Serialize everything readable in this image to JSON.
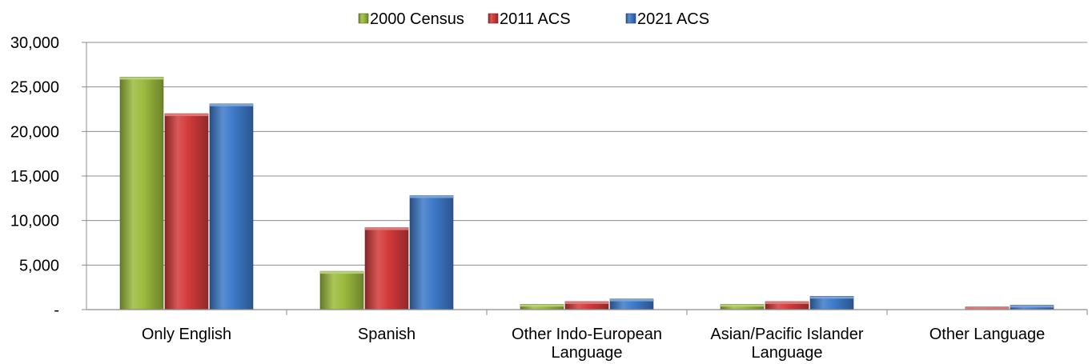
{
  "chart_data": {
    "type": "bar",
    "categories": [
      [
        "Only English"
      ],
      [
        "Spanish"
      ],
      [
        "Other Indo-European",
        "Language"
      ],
      [
        "Asian/Pacific Islander",
        "Language"
      ],
      [
        "Other Language"
      ]
    ],
    "series": [
      {
        "name": "2000 Census",
        "color": "#9bbb3d",
        "values": [
          26100,
          4300,
          600,
          600,
          0
        ]
      },
      {
        "name": "2011 ACS",
        "color": "#d23a3a",
        "values": [
          22000,
          9200,
          900,
          900,
          300
        ]
      },
      {
        "name": "2021 ACS",
        "color": "#3d7ac9",
        "values": [
          23100,
          12800,
          1200,
          1500,
          500
        ]
      }
    ],
    "ylim": [
      0,
      30000
    ],
    "yticks": [
      {
        "value": 0,
        "label": "-"
      },
      {
        "value": 5000,
        "label": "5,000"
      },
      {
        "value": 10000,
        "label": "10,000"
      },
      {
        "value": 15000,
        "label": "15,000"
      },
      {
        "value": 20000,
        "label": "20,000"
      },
      {
        "value": 25000,
        "label": "25,000"
      },
      {
        "value": 30000,
        "label": "30,000"
      }
    ],
    "grid": true,
    "legend_position": "top-center"
  }
}
